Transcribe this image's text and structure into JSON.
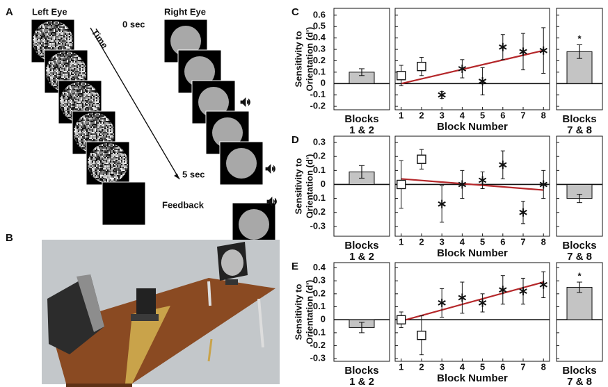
{
  "panel_a": {
    "label": "A",
    "left_eye": "Left Eye",
    "right_eye": "Right Eye",
    "time": "Time",
    "start": "0 sec",
    "end": "5 sec",
    "feedback": "Feedback"
  },
  "panel_b": {
    "label": "B"
  },
  "chart_data": [
    {
      "type": "block-sensitivity",
      "panel": "C",
      "y_label": [
        "Sensitivity to",
        "Orientation (d')"
      ],
      "ylim": [
        -0.23,
        0.66
      ],
      "yticks": [
        -0.2,
        -0.1,
        0,
        0.1,
        0.2,
        0.3,
        0.4,
        0.5,
        0.6
      ],
      "early": {
        "label": [
          "Blocks",
          "1 & 2"
        ],
        "value": 0.1,
        "error": 0.03,
        "color": "#c4c4c4"
      },
      "late": {
        "label": [
          "Blocks",
          "7 & 8"
        ],
        "value": 0.28,
        "error": 0.06,
        "color": "#c4c4c4",
        "significance": "*"
      },
      "x_label": "Block Number",
      "xlim": [
        0.7,
        8.3
      ],
      "xticks": [
        1,
        2,
        3,
        4,
        5,
        6,
        7,
        8
      ],
      "x": [
        1,
        2,
        3,
        4,
        5,
        6,
        7,
        8
      ],
      "values": [
        0.07,
        0.15,
        -0.1,
        0.13,
        0.02,
        0.32,
        0.28,
        0.29
      ],
      "errors": [
        0.09,
        0.08,
        0.03,
        0.08,
        0.12,
        0.11,
        0.16,
        0.2
      ],
      "markers": [
        "square",
        "square",
        "star",
        "star",
        "star",
        "star",
        "star",
        "star"
      ],
      "trend": {
        "x": [
          1,
          8
        ],
        "values": [
          0,
          0.29
        ],
        "color": "#b5282b"
      }
    },
    {
      "type": "block-sensitivity",
      "panel": "D",
      "y_label": [
        "Sensitivity to",
        "Orientation (d')"
      ],
      "ylim": [
        -0.37,
        0.345
      ],
      "yticks": [
        -0.3,
        -0.2,
        -0.1,
        0,
        0.1,
        0.2,
        0.3
      ],
      "early": {
        "label": [
          "Blocks",
          "1 & 2"
        ],
        "value": 0.09,
        "error": 0.045,
        "color": "#c4c4c4"
      },
      "late": {
        "label": [
          "Blocks",
          "7 & 8"
        ],
        "value": -0.1,
        "error": 0.03,
        "color": "#c4c4c4"
      },
      "x_label": "Block Number",
      "xlim": [
        0.7,
        8.3
      ],
      "xticks": [
        1,
        2,
        3,
        4,
        5,
        6,
        7,
        8
      ],
      "x": [
        1,
        2,
        3,
        4,
        5,
        6,
        7,
        8
      ],
      "values": [
        0,
        0.18,
        -0.14,
        0,
        0.03,
        0.14,
        -0.2,
        0
      ],
      "errors": [
        0.17,
        0.07,
        0.13,
        0.1,
        0.06,
        0.1,
        0.08,
        0.1
      ],
      "markers": [
        "square",
        "square",
        "star",
        "star",
        "star",
        "star",
        "star",
        "star"
      ],
      "trend": {
        "x": [
          1,
          8
        ],
        "values": [
          0.04,
          -0.04
        ],
        "color": "#b5282b"
      }
    },
    {
      "type": "block-sensitivity",
      "panel": "E",
      "y_label": [
        "Sensitivity to",
        "Orientation (d')"
      ],
      "ylim": [
        -0.32,
        0.44
      ],
      "yticks": [
        -0.3,
        -0.2,
        -0.1,
        0,
        0.1,
        0.2,
        0.3,
        0.4
      ],
      "early": {
        "label": [
          "Blocks",
          "1 & 2"
        ],
        "value": -0.06,
        "error": 0.04,
        "color": "#c4c4c4"
      },
      "late": {
        "label": [
          "Blocks",
          "7 & 8"
        ],
        "value": 0.25,
        "error": 0.04,
        "color": "#c4c4c4",
        "significance": "*"
      },
      "x_label": "Block Number",
      "xlim": [
        0.7,
        8.3
      ],
      "xticks": [
        1,
        2,
        3,
        4,
        5,
        6,
        7,
        8
      ],
      "x": [
        1,
        2,
        3,
        4,
        5,
        6,
        7,
        8
      ],
      "values": [
        0,
        -0.12,
        0.13,
        0.17,
        0.13,
        0.23,
        0.22,
        0.27
      ],
      "errors": [
        0.06,
        0.15,
        0.11,
        0.12,
        0.07,
        0.11,
        0.1,
        0.1
      ],
      "markers": [
        "square",
        "square",
        "star",
        "star",
        "star",
        "star",
        "star",
        "star"
      ],
      "trend": {
        "x": [
          1,
          8
        ],
        "values": [
          -0.01,
          0.29
        ],
        "color": "#b5282b"
      }
    }
  ]
}
